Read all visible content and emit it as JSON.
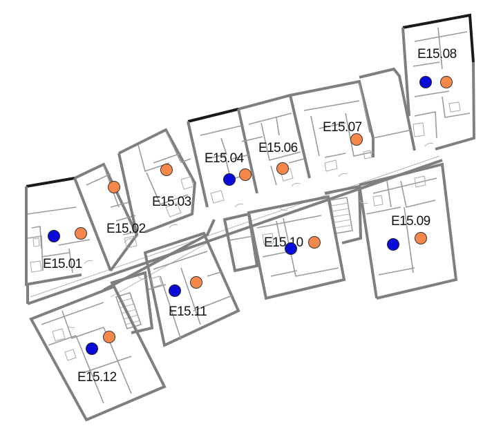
{
  "colors": {
    "blue_marker": "#0a0adb",
    "orange_marker": "#f6874a",
    "wall": "#7f7f7f"
  },
  "units": [
    {
      "id": "E15.01",
      "label": "E15.01",
      "markers": [
        "blue",
        "orange"
      ]
    },
    {
      "id": "E15.02",
      "label": "E15.02",
      "markers": [
        "orange"
      ]
    },
    {
      "id": "E15.03",
      "label": "E15.03",
      "markers": [
        "orange"
      ]
    },
    {
      "id": "E15.04",
      "label": "E15.04",
      "markers": [
        "blue",
        "orange"
      ]
    },
    {
      "id": "E15.06",
      "label": "E15.06",
      "markers": [
        "orange"
      ]
    },
    {
      "id": "E15.07",
      "label": "E15.07",
      "markers": [
        "orange"
      ]
    },
    {
      "id": "E15.08",
      "label": "E15.08",
      "markers": [
        "blue",
        "orange"
      ]
    },
    {
      "id": "E15.09",
      "label": "E15.09",
      "markers": [
        "blue",
        "orange"
      ]
    },
    {
      "id": "E15.10",
      "label": "E15.10",
      "markers": [
        "blue",
        "orange"
      ]
    },
    {
      "id": "E15.11",
      "label": "E15.11",
      "markers": [
        "blue",
        "orange"
      ]
    },
    {
      "id": "E15.12",
      "label": "E15.12",
      "markers": [
        "blue",
        "orange"
      ]
    }
  ]
}
